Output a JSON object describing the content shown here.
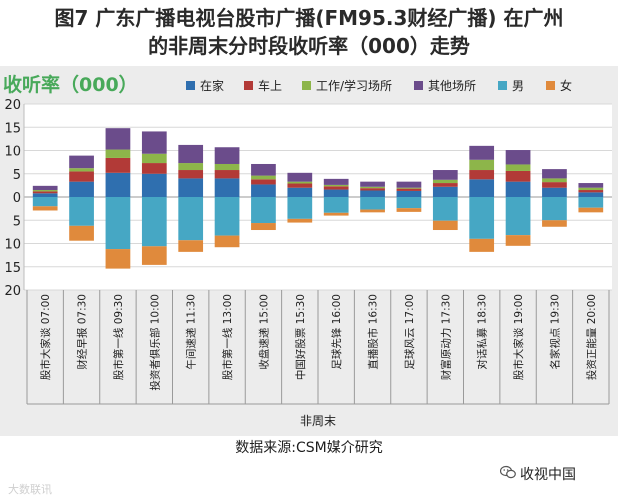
{
  "title_line1": "图7 广东广播电视台股市广播(FM95.3财经广播) 在广州",
  "title_line2": "的非周末分时段收听率（000）走势",
  "source_caption": "数据来源:CSM媒介研究",
  "brand_text": "收视中国",
  "watermark_text": "大数联讯",
  "colors": {
    "home": "#2f6faf",
    "car": "#b23a37",
    "work": "#8db54a",
    "other": "#6b4c8b",
    "male": "#46a7c4",
    "female": "#e08a3c",
    "title_green": "#48a95a",
    "panel": "#ececec"
  },
  "chart_data": {
    "type": "bar",
    "title": "图7 广东广播电视台股市广播(FM95.3财经广播) 在广州的非周末分时段收听率（000）走势",
    "ylabel": "收听率（000）",
    "xlabel": "非周末",
    "ylim": [
      -20,
      20
    ],
    "yticks": [
      20,
      15,
      10,
      5,
      0,
      5,
      10,
      15,
      20
    ],
    "categories": [
      "股市大家谈 07:00",
      "财经早报 07:30",
      "股市第一线 09:30",
      "投资者俱乐部 10:00",
      "午间速递 11:30",
      "股市第一线 13:00",
      "收盘速递 15:00",
      "中国好股票 15:30",
      "足球先锋 16:00",
      "直播股市 16:30",
      "足球风云 17:00",
      "财富原动力 17:30",
      "对话私募 18:30",
      "股市大家谈 19:00",
      "名家视点 19:30",
      "投资正能量 20:00"
    ],
    "series": [
      {
        "name": "在家",
        "key": "home",
        "direction": "up",
        "values": [
          0.8,
          3.3,
          5.2,
          5.0,
          4.0,
          4.0,
          2.7,
          2.0,
          1.6,
          1.4,
          1.3,
          2.2,
          3.8,
          3.3,
          2.0,
          1.0
        ]
      },
      {
        "name": "车上",
        "key": "car",
        "direction": "up",
        "values": [
          0.4,
          2.2,
          3.2,
          2.3,
          1.8,
          1.8,
          1.1,
          0.9,
          0.7,
          0.5,
          0.5,
          0.8,
          2.0,
          2.3,
          1.2,
          0.5
        ]
      },
      {
        "name": "工作/学习场所",
        "key": "work",
        "direction": "up",
        "values": [
          0.3,
          0.7,
          1.8,
          2.0,
          1.5,
          1.3,
          0.8,
          0.4,
          0.3,
          0.3,
          0.2,
          0.7,
          2.2,
          1.4,
          0.8,
          0.5
        ]
      },
      {
        "name": "其他场所",
        "key": "other",
        "direction": "up",
        "values": [
          0.9,
          2.7,
          4.6,
          4.8,
          3.9,
          3.6,
          2.5,
          1.9,
          1.3,
          1.1,
          1.3,
          2.1,
          3.0,
          3.1,
          2.0,
          1.0
        ]
      },
      {
        "name": "男",
        "key": "male",
        "direction": "down",
        "values": [
          -2.0,
          -6.2,
          -11.2,
          -10.6,
          -9.3,
          -8.3,
          -5.6,
          -4.7,
          -3.4,
          -2.7,
          -2.4,
          -5.1,
          -9.0,
          -8.2,
          -5.0,
          -2.3
        ]
      },
      {
        "name": "女",
        "key": "female",
        "direction": "down",
        "values": [
          -0.9,
          -3.2,
          -4.2,
          -4.0,
          -2.5,
          -2.5,
          -1.5,
          -0.8,
          -0.6,
          -0.6,
          -0.8,
          -2.0,
          -2.8,
          -2.3,
          -1.4,
          -1.0
        ]
      }
    ]
  }
}
